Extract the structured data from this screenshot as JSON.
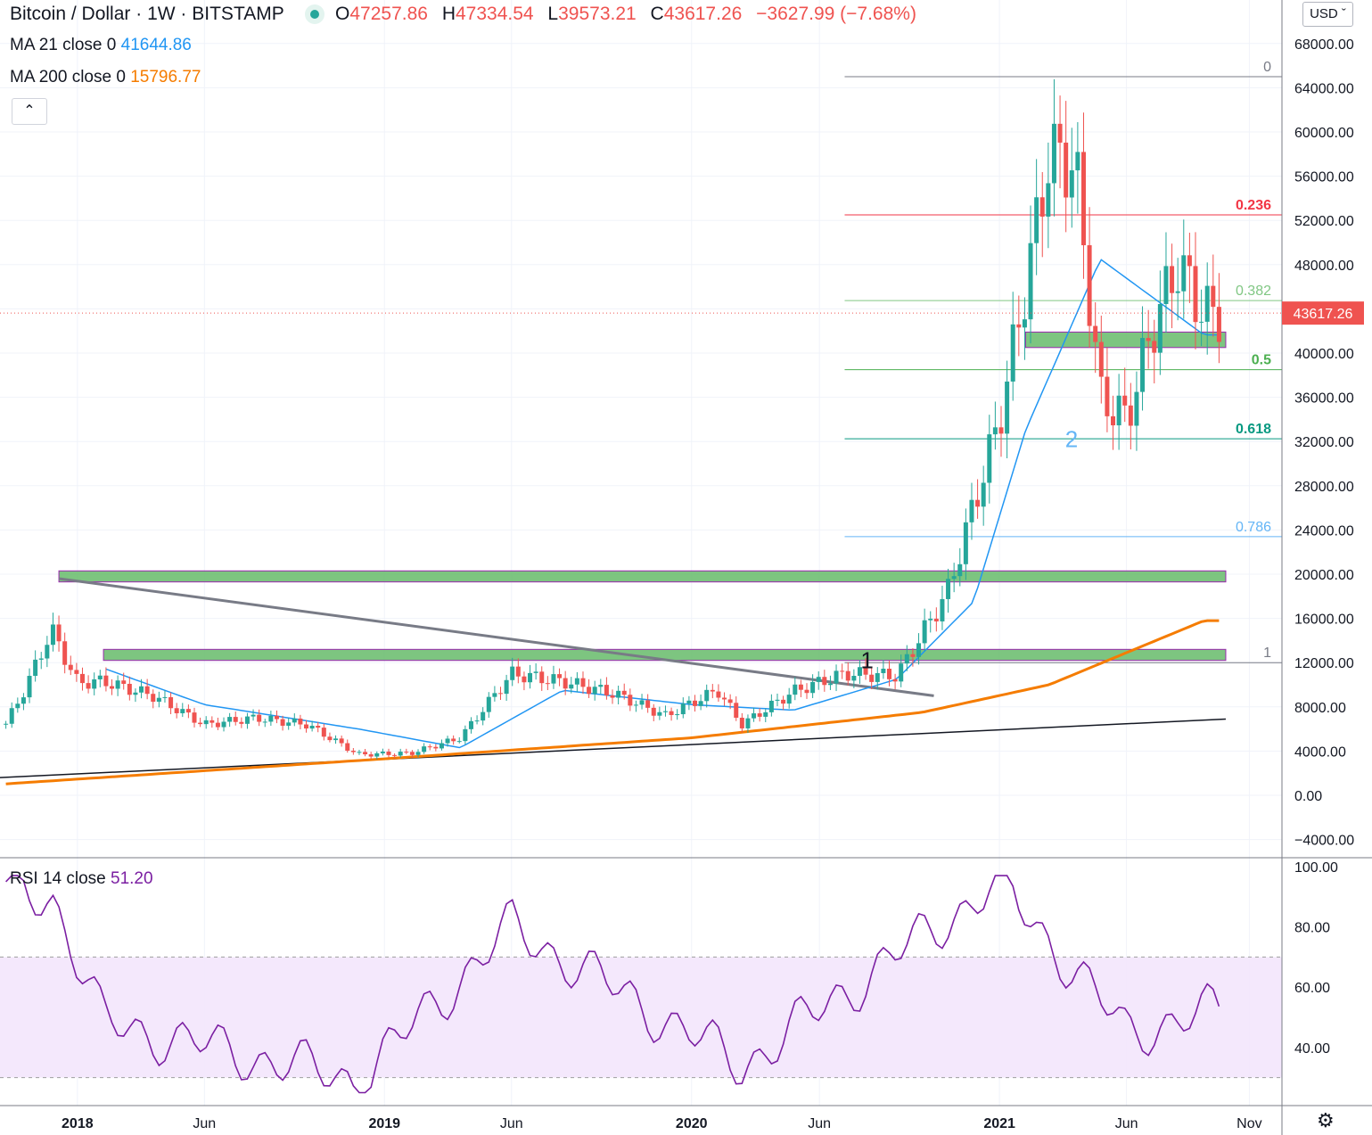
{
  "legend": {
    "symbol": "Bitcoin / Dollar",
    "interval": "1W",
    "exchange": "BITSTAMP",
    "sep": "·",
    "open_label": "O",
    "open": "47257.86",
    "high_label": "H",
    "high": "47334.54",
    "low_label": "L",
    "low": "39573.21",
    "close_label": "C",
    "close": "43617.26",
    "change": "−3627.99 (−7.68%)"
  },
  "ma21": {
    "label": "MA 21 close 0",
    "value": "41644.86",
    "color": "#2196f3"
  },
  "ma200": {
    "label": "MA 200 close 0",
    "value": "15796.77",
    "color": "#f57c00"
  },
  "rsi": {
    "label": "RSI 14 close",
    "value": "51.20",
    "color": "#7b1fa2"
  },
  "currency_button": "USD",
  "collapse_icon": "chevron-up-icon",
  "settings_icon": "gear-icon",
  "price_axis": {
    "ticks": [
      "68000.00",
      "64000.00",
      "60000.00",
      "56000.00",
      "52000.00",
      "48000.00",
      "44000.00",
      "40000.00",
      "36000.00",
      "32000.00",
      "28000.00",
      "24000.00",
      "20000.00",
      "16000.00",
      "12000.00",
      "8000.00",
      "4000.00",
      "0.00",
      "−4000.00"
    ],
    "last_price": "43617.26",
    "last_price_color": "#ef5350"
  },
  "rsi_axis": {
    "ticks": [
      "100.00",
      "80.00",
      "60.00",
      "40.00"
    ],
    "band_upper": 70,
    "band_lower": 30
  },
  "time_axis": {
    "ticks": [
      "2018",
      "Jun",
      "2019",
      "Jun",
      "2020",
      "Jun",
      "2021",
      "Jun",
      "Nov"
    ]
  },
  "fib_levels": [
    {
      "label": "0",
      "price": 65000,
      "color": "#787b86"
    },
    {
      "label": "0.236",
      "price": 52500,
      "color": "#f23645"
    },
    {
      "label": "0.382",
      "price": 44750,
      "color": "#81c784"
    },
    {
      "label": "0.5",
      "price": 38500,
      "color": "#4caf50"
    },
    {
      "label": "0.618",
      "price": 32250,
      "color": "#089981"
    },
    {
      "label": "0.786",
      "price": 23400,
      "color": "#64b5f6"
    },
    {
      "label": "1",
      "price": 12000,
      "color": "#787b86"
    }
  ],
  "annotations": [
    {
      "label": "1",
      "color": "#131722"
    },
    {
      "label": "2",
      "color": "#64b5f6"
    }
  ],
  "chart_data": {
    "type": "candlestick",
    "interval": "1W",
    "y_range": [
      -5000,
      72000
    ],
    "rsi_range": [
      20,
      100
    ],
    "ohlc_close_series": [
      {
        "date": "2017-10",
        "close": 5500
      },
      {
        "date": "2017-11",
        "close": 9800
      },
      {
        "date": "2017-12",
        "close": 15000
      },
      {
        "date": "2018-01",
        "close": 10200
      },
      {
        "date": "2018-02",
        "close": 10300
      },
      {
        "date": "2018-04",
        "close": 9000
      },
      {
        "date": "2018-06",
        "close": 6400
      },
      {
        "date": "2018-08",
        "close": 7000
      },
      {
        "date": "2018-10",
        "close": 6400
      },
      {
        "date": "2018-12",
        "close": 3700
      },
      {
        "date": "2019-02",
        "close": 3800
      },
      {
        "date": "2019-04",
        "close": 5200
      },
      {
        "date": "2019-06",
        "close": 11000
      },
      {
        "date": "2019-08",
        "close": 10300
      },
      {
        "date": "2019-10",
        "close": 9200
      },
      {
        "date": "2019-12",
        "close": 7200
      },
      {
        "date": "2020-02",
        "close": 9500
      },
      {
        "date": "2020-03",
        "close": 6400
      },
      {
        "date": "2020-05",
        "close": 9400
      },
      {
        "date": "2020-07",
        "close": 11000
      },
      {
        "date": "2020-09",
        "close": 10800
      },
      {
        "date": "2020-11",
        "close": 18500
      },
      {
        "date": "2021-01",
        "close": 34000
      },
      {
        "date": "2021-02",
        "close": 46000
      },
      {
        "date": "2021-03",
        "close": 58000
      },
      {
        "date": "2021-04",
        "close": 57000
      },
      {
        "date": "2021-05",
        "close": 36000
      },
      {
        "date": "2021-06",
        "close": 34000
      },
      {
        "date": "2021-07",
        "close": 42000
      },
      {
        "date": "2021-08",
        "close": 48000
      },
      {
        "date": "2021-09",
        "close": 43617
      }
    ],
    "ma21_series": [
      {
        "date": "2018-02",
        "value": 11500
      },
      {
        "date": "2018-06",
        "value": 8200
      },
      {
        "date": "2018-12",
        "value": 6000
      },
      {
        "date": "2019-04",
        "value": 4300
      },
      {
        "date": "2019-08",
        "value": 9500
      },
      {
        "date": "2020-01",
        "value": 8200
      },
      {
        "date": "2020-05",
        "value": 7700
      },
      {
        "date": "2020-09",
        "value": 10500
      },
      {
        "date": "2020-12",
        "value": 17500
      },
      {
        "date": "2021-02",
        "value": 33000
      },
      {
        "date": "2021-05",
        "value": 48500
      },
      {
        "date": "2021-09",
        "value": 41645
      }
    ],
    "ma200_series": [
      {
        "date": "2017-10",
        "value": 1000
      },
      {
        "date": "2019-01",
        "value": 3300
      },
      {
        "date": "2020-01",
        "value": 5200
      },
      {
        "date": "2020-10",
        "value": 7500
      },
      {
        "date": "2021-03",
        "value": 10000
      },
      {
        "date": "2021-09",
        "value": 15797
      }
    ],
    "rsi_series": [
      {
        "date": "2017-12",
        "value": 91
      },
      {
        "date": "2018-02",
        "value": 48
      },
      {
        "date": "2018-12",
        "value": 29
      },
      {
        "date": "2019-06",
        "value": 80
      },
      {
        "date": "2020-03",
        "value": 34
      },
      {
        "date": "2021-01",
        "value": 95
      },
      {
        "date": "2021-06",
        "value": 45
      },
      {
        "date": "2021-09",
        "value": 51.2
      }
    ],
    "support_zones": [
      {
        "from": 19300,
        "to": 20300
      },
      {
        "from": 12200,
        "to": 13200
      },
      {
        "from": 40500,
        "to": 41900
      }
    ]
  }
}
